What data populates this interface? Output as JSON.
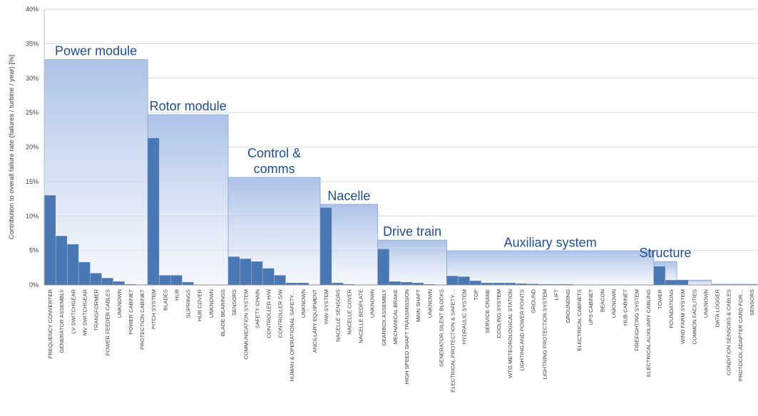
{
  "chart_data": {
    "type": "bar",
    "ylabel": "Contribution to overall failure rate (failures / turbine / year) [%]",
    "ylim": [
      0,
      40
    ],
    "yticks": [
      "0%",
      "5%",
      "10%",
      "15%",
      "20%",
      "25%",
      "30%",
      "35%",
      "40%"
    ],
    "grid": true,
    "colors": {
      "bar": "#4a78b4",
      "group_top": "#a8bfe6",
      "group_bottom": "#eef2fa",
      "group_edge": "#8aa6d2",
      "label": "#1f4e8c",
      "grid": "#d9d9d9"
    },
    "groups": [
      {
        "label": [
          "Power module"
        ],
        "value": 32.7
      },
      {
        "label": [
          "Rotor module"
        ],
        "value": 24.7
      },
      {
        "label": [
          "Control &",
          "comms"
        ],
        "value": 15.6
      },
      {
        "label": [
          "Nacelle"
        ],
        "value": 11.7
      },
      {
        "label": [
          "Drive train"
        ],
        "value": 6.5
      },
      {
        "label": [
          "Auxiliary system"
        ],
        "value": 4.9
      },
      {
        "label": [
          "Structure"
        ],
        "value": 3.4
      },
      {
        "label": [],
        "value": 0.7
      },
      {
        "label": [],
        "value": 0.1
      }
    ],
    "categories": [
      {
        "name": "FREQUENCY CONVERTER",
        "value": 13.0,
        "group": 0
      },
      {
        "name": "GENERATOR ASSEMBLY",
        "value": 7.1,
        "group": 0
      },
      {
        "name": "LV SWITCHGEAR",
        "value": 5.9,
        "group": 0
      },
      {
        "name": "MV SWITCHGEAR",
        "value": 3.3,
        "group": 0
      },
      {
        "name": "TRANSFORMER",
        "value": 1.7,
        "group": 0
      },
      {
        "name": "POWER FEEDER CABLES",
        "value": 1.0,
        "group": 0
      },
      {
        "name": "UNKNOWN",
        "value": 0.5,
        "group": 0
      },
      {
        "name": "POWER CABINET",
        "value": 0.1,
        "group": 0
      },
      {
        "name": "PROTECTION CABINET",
        "value": 0.05,
        "group": 0
      },
      {
        "name": "PITCH SYSTEM",
        "value": 21.3,
        "group": 1
      },
      {
        "name": "BLADES",
        "value": 1.4,
        "group": 1
      },
      {
        "name": "HUB",
        "value": 1.4,
        "group": 1
      },
      {
        "name": "SLIPRINGS",
        "value": 0.4,
        "group": 1
      },
      {
        "name": "HUB COVER",
        "value": 0.05,
        "group": 1
      },
      {
        "name": "UNKNOWN",
        "value": 0.05,
        "group": 1
      },
      {
        "name": "BLADE BEARINGS",
        "value": 0.05,
        "group": 1
      },
      {
        "name": "SENSORS",
        "value": 4.1,
        "group": 2
      },
      {
        "name": "COMMUNICATION SYSTEM",
        "value": 3.8,
        "group": 2
      },
      {
        "name": "SAFETY CHAIN",
        "value": 3.4,
        "group": 2
      },
      {
        "name": "CONTROLLER H/W",
        "value": 2.4,
        "group": 2
      },
      {
        "name": "CONTROLLER S/W",
        "value": 1.4,
        "group": 2
      },
      {
        "name": "HUMAN & OPERATIONAL SAFETY…",
        "value": 0.3,
        "group": 2
      },
      {
        "name": "UNKNOWN",
        "value": 0.3,
        "group": 2
      },
      {
        "name": "ANCILLARY EQUIPMENT",
        "value": 0.05,
        "group": 2
      },
      {
        "name": "YAW SYSTEM",
        "value": 11.2,
        "group": 3
      },
      {
        "name": "NACELLE SENSORS",
        "value": 0.3,
        "group": 3
      },
      {
        "name": "NACELLE COVER",
        "value": 0.1,
        "group": 3
      },
      {
        "name": "NACELLE BEDPLATE",
        "value": 0.05,
        "group": 3
      },
      {
        "name": "UNKNOWN",
        "value": 0.05,
        "group": 3
      },
      {
        "name": "GEARBOX ASSEMBLY",
        "value": 5.2,
        "group": 4
      },
      {
        "name": "MECHANICAL BRAKE",
        "value": 0.5,
        "group": 4
      },
      {
        "name": "HIGH SPEED SHAFT TRANSMISSION",
        "value": 0.4,
        "group": 4
      },
      {
        "name": "MAIN SHAFT",
        "value": 0.3,
        "group": 4
      },
      {
        "name": "UNKNOWN",
        "value": 0.1,
        "group": 4
      },
      {
        "name": "GENERATOR SILENT BLOCKS",
        "value": 0.05,
        "group": 4
      },
      {
        "name": "ELECTRICAL PROTECTION & SAFETY…",
        "value": 1.3,
        "group": 5
      },
      {
        "name": "HYDRAULIC SYSTEM",
        "value": 1.2,
        "group": 5
      },
      {
        "name": "TOP",
        "value": 0.6,
        "group": 5
      },
      {
        "name": "SERVICE CRANE",
        "value": 0.3,
        "group": 5
      },
      {
        "name": "COOLING SYSTEM",
        "value": 0.3,
        "group": 5
      },
      {
        "name": "WTG METEOROLOGICAL STATION",
        "value": 0.3,
        "group": 5
      },
      {
        "name": "LIGHTING AND POWER POINTS",
        "value": 0.2,
        "group": 5
      },
      {
        "name": "GROUND",
        "value": 0.15,
        "group": 5
      },
      {
        "name": "LIGHTNING PROTECTION SYSTEM",
        "value": 0.1,
        "group": 5
      },
      {
        "name": "LIFT",
        "value": 0.1,
        "group": 5
      },
      {
        "name": "GROUNDING",
        "value": 0.1,
        "group": 5
      },
      {
        "name": "ELECTRICAL CABINETS",
        "value": 0.05,
        "group": 5
      },
      {
        "name": "UPS CABINET",
        "value": 0.05,
        "group": 5
      },
      {
        "name": "BEACON",
        "value": 0.05,
        "group": 5
      },
      {
        "name": "UNKNOWN",
        "value": 0.05,
        "group": 5
      },
      {
        "name": "HUB CABINET",
        "value": 0.05,
        "group": 5
      },
      {
        "name": "FIREFIGHTING SYSTEM",
        "value": 0.05,
        "group": 5
      },
      {
        "name": "ELECTRICAL AUXILIARY CABLING",
        "value": 0.05,
        "group": 5
      },
      {
        "name": "TOWER",
        "value": 2.7,
        "group": 6
      },
      {
        "name": "FOUNDATIONS",
        "value": 0.7,
        "group": 6
      },
      {
        "name": "WIND FARM SYSTEM",
        "value": 0.7,
        "group": 7
      },
      {
        "name": "COMMON FACILITIES",
        "value": 0.05,
        "group": 7
      },
      {
        "name": "UNKNOWN",
        "value": 0.05,
        "group": 7
      },
      {
        "name": "DATA LOGGER",
        "value": 0.05,
        "group": 8
      },
      {
        "name": "CONDITION SENSORS & CABLES",
        "value": 0.05,
        "group": 8
      },
      {
        "name": "PROTOCOL ADAPTER CARD FOR…",
        "value": 0.05,
        "group": 8
      },
      {
        "name": "SENSORS",
        "value": 0.05,
        "group": 8
      }
    ]
  }
}
